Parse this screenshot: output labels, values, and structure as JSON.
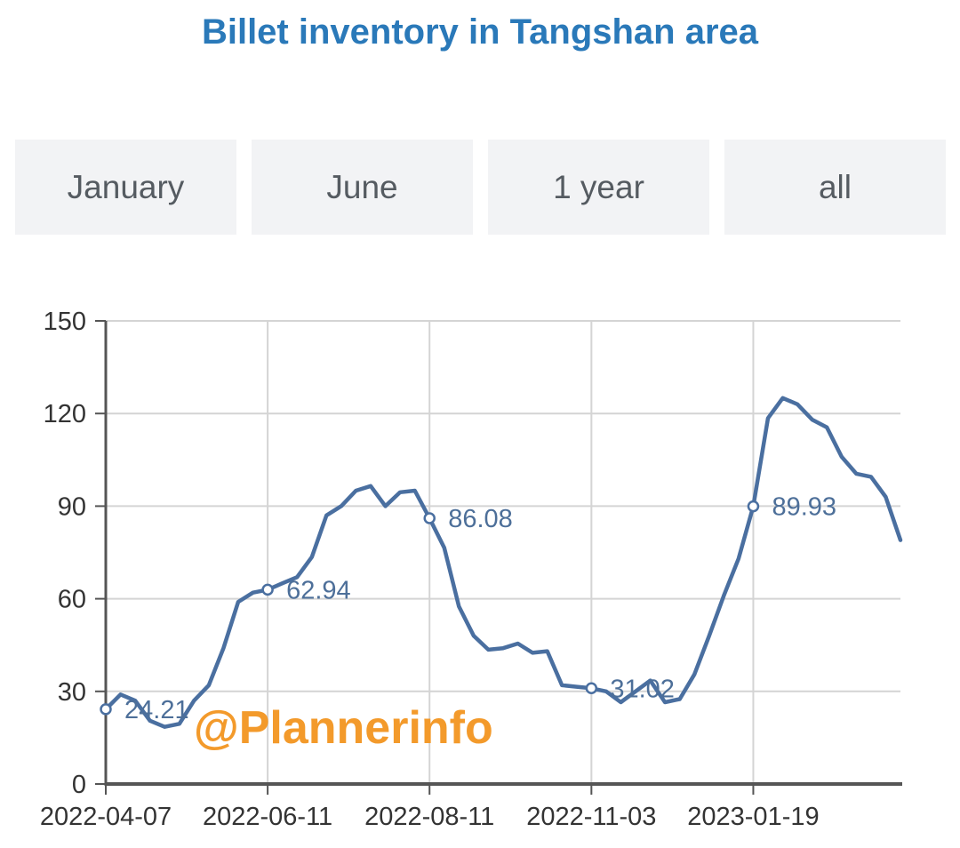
{
  "header": {
    "title": "Billet inventory in Tangshan area"
  },
  "tabs": [
    {
      "label": "January"
    },
    {
      "label": "June"
    },
    {
      "label": "1 year"
    },
    {
      "label": "all"
    }
  ],
  "watermark": "@Plannerinfo",
  "colors": {
    "title": "#2a79b9",
    "line": "#4a6fa0",
    "grid": "#d4d4d4",
    "tab_bg": "#f2f3f5",
    "watermark": "#f39a2b"
  },
  "chart_data": {
    "type": "line",
    "title": "Billet inventory in Tangshan area",
    "xlabel": "",
    "ylabel": "",
    "ylim": [
      0,
      150
    ],
    "yticks": [
      0,
      30,
      60,
      90,
      120,
      150
    ],
    "xticks": [
      "2022-04-07",
      "2022-06-11",
      "2022-08-11",
      "2022-11-03",
      "2023-01-19"
    ],
    "grid": true,
    "series": [
      {
        "values": [
          24.21,
          29,
          27,
          20.5,
          18.5,
          19.5,
          27,
          32,
          44,
          59,
          62,
          62.94,
          65,
          67,
          73.5,
          87,
          90,
          95,
          96.5,
          90,
          94.5,
          95,
          86.08,
          76.5,
          57.5,
          48,
          43.5,
          44,
          45.5,
          42.5,
          43,
          32,
          31.5,
          31.02,
          30,
          26.5,
          30,
          33.5,
          26.5,
          27.5,
          35.5,
          48,
          61,
          73,
          89.93,
          118.5,
          125,
          123,
          118,
          115.5,
          106,
          100.5,
          99.5,
          93,
          79
        ],
        "labeled_points": [
          {
            "index": 0,
            "value": 24.21,
            "date": "2022-04-07",
            "label": "24.21"
          },
          {
            "index": 11,
            "value": 62.94,
            "date": "2022-06-11",
            "label": "62.94"
          },
          {
            "index": 22,
            "value": 86.08,
            "date": "2022-08-11",
            "label": "86.08"
          },
          {
            "index": 33,
            "value": 31.02,
            "date": "2022-11-03",
            "label": "31.02"
          },
          {
            "index": 44,
            "value": 89.93,
            "date": "2023-01-19",
            "label": "89.93"
          }
        ]
      }
    ]
  }
}
